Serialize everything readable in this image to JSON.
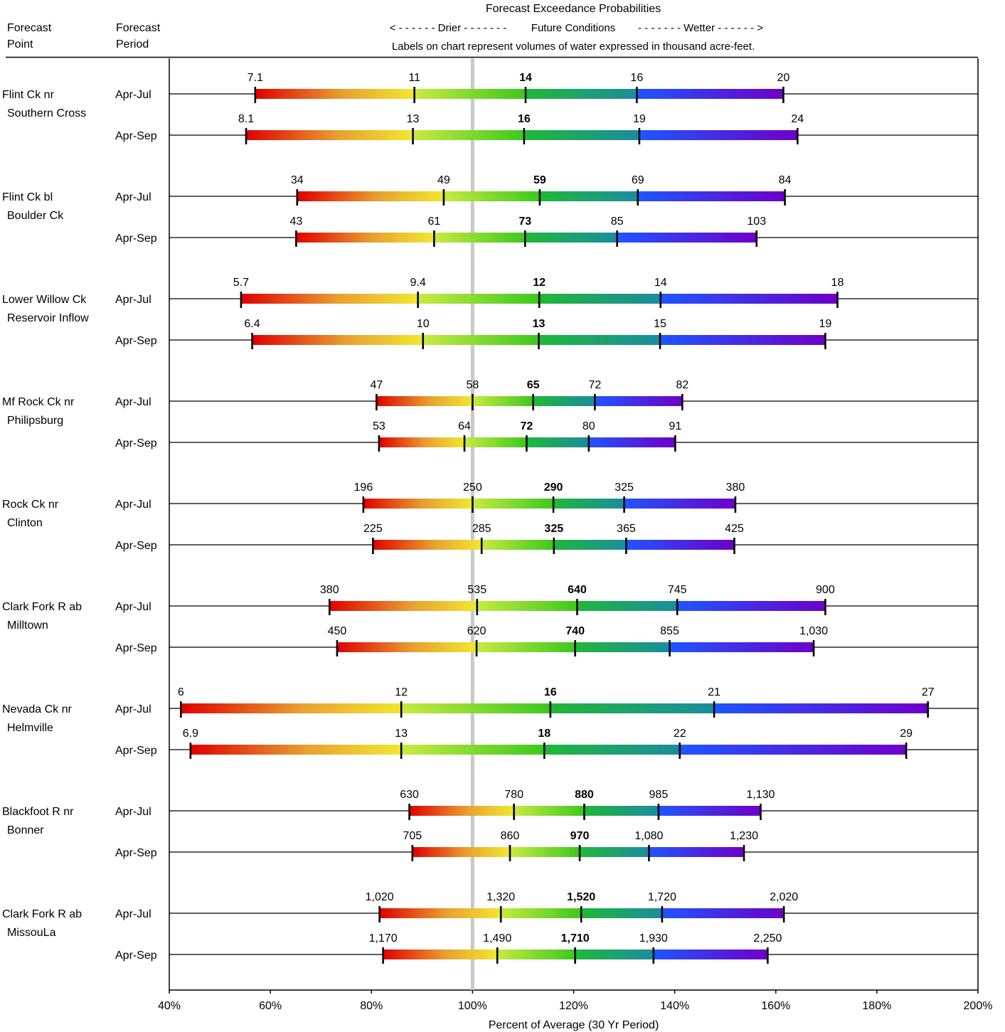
{
  "header": {
    "col1": [
      "Forecast",
      "Point"
    ],
    "col2": [
      "Forecast",
      "Period"
    ],
    "title": "Forecast Exceedance Probabilities",
    "drier_label": "< - - - - - -  Drier  - - - - - - -",
    "future_label": "Future Conditions",
    "wetter_label": "- - - - - - -  Wetter  - - - - - - >",
    "note": "Labels on chart represent volumes of water expressed in thousand acre-feet."
  },
  "chart_data": {
    "type": "range-bar",
    "title": "Forecast Exceedance Probabilities",
    "xlabel": "Percent of Average (30 Yr Period)",
    "xlim": [
      40,
      200
    ],
    "xticks": [
      40,
      60,
      80,
      100,
      120,
      140,
      160,
      180,
      200
    ],
    "xtick_labels": [
      "40%",
      "60%",
      "80%",
      "100%",
      "120%",
      "140%",
      "160%",
      "180%",
      "200%"
    ],
    "reference_line": 100,
    "colors": [
      "#e00000",
      "#f0e830",
      "#3cc81e",
      "#1f55ff",
      "#6e00c8"
    ],
    "groups": [
      {
        "point": [
          "Flint Ck nr",
          "Southern Cross"
        ],
        "rows": [
          {
            "period": "Apr-Jul",
            "pct": [
              57,
              88.5,
              110.5,
              132.5,
              161.5
            ],
            "labels": [
              "7.1",
              "11",
              "14",
              "16",
              "20"
            ]
          },
          {
            "period": "Apr-Sep",
            "pct": [
              55.2,
              88.2,
              110.2,
              133,
              164.3
            ],
            "labels": [
              "8.1",
              "13",
              "16",
              "19",
              "24"
            ]
          }
        ]
      },
      {
        "point": [
          "Flint Ck bl",
          "Boulder Ck"
        ],
        "rows": [
          {
            "period": "Apr-Jul",
            "pct": [
              65.3,
              94.3,
              113.3,
              132.7,
              161.8
            ],
            "labels": [
              "34",
              "49",
              "59",
              "69",
              "84"
            ]
          },
          {
            "period": "Apr-Sep",
            "pct": [
              65.1,
              92.4,
              110.4,
              128.6,
              156.2
            ],
            "labels": [
              "43",
              "61",
              "73",
              "85",
              "103"
            ]
          }
        ]
      },
      {
        "point": [
          "Lower Willow Ck",
          "Reservoir Inflow"
        ],
        "rows": [
          {
            "period": "Apr-Jul",
            "pct": [
              54.2,
              89.2,
              113.2,
              137.2,
              172.2
            ],
            "labels": [
              "5.7",
              "9.4",
              "12",
              "14",
              "18"
            ]
          },
          {
            "period": "Apr-Sep",
            "pct": [
              56.4,
              90.2,
              113.1,
              137.1,
              169.8
            ],
            "labels": [
              "6.4",
              "10",
              "13",
              "15",
              "19"
            ]
          }
        ]
      },
      {
        "point": [
          "Mf Rock Ck nr",
          "Philipsburg"
        ],
        "rows": [
          {
            "period": "Apr-Jul",
            "pct": [
              81,
              100,
              112,
              124.2,
              141.5
            ],
            "labels": [
              "47",
              "58",
              "65",
              "72",
              "82"
            ]
          },
          {
            "period": "Apr-Sep",
            "pct": [
              81.5,
              98.4,
              110.7,
              123,
              140.1
            ],
            "labels": [
              "53",
              "64",
              "72",
              "80",
              "91"
            ]
          }
        ]
      },
      {
        "point": [
          "Rock Ck nr",
          "Clinton"
        ],
        "rows": [
          {
            "period": "Apr-Jul",
            "pct": [
              78.4,
              100,
              116,
              130,
              152
            ],
            "labels": [
              "196",
              "250",
              "290",
              "325",
              "380"
            ]
          },
          {
            "period": "Apr-Sep",
            "pct": [
              80.3,
              101.8,
              116.1,
              130.4,
              151.8
            ],
            "labels": [
              "225",
              "285",
              "325",
              "365",
              "425"
            ]
          }
        ]
      },
      {
        "point": [
          "Clark Fork R ab",
          "Milltown"
        ],
        "rows": [
          {
            "period": "Apr-Jul",
            "pct": [
              71.7,
              100.9,
              120.7,
              140.5,
              169.8
            ],
            "labels": [
              "380",
              "535",
              "640",
              "745",
              "900"
            ]
          },
          {
            "period": "Apr-Sep",
            "pct": [
              73.2,
              100.8,
              120.3,
              139,
              167.5
            ],
            "labels": [
              "450",
              "620",
              "740",
              "855",
              "1,030"
            ]
          }
        ]
      },
      {
        "point": [
          "Nevada Ck nr",
          "Helmville"
        ],
        "rows": [
          {
            "period": "Apr-Jul",
            "pct": [
              42.3,
              85.9,
              115.4,
              147.8,
              190.1
            ],
            "labels": [
              "6",
              "12",
              "16",
              "21",
              "27"
            ]
          },
          {
            "period": "Apr-Sep",
            "pct": [
              44.2,
              85.9,
              114.2,
              141,
              185.8
            ],
            "labels": [
              "6.9",
              "13",
              "18",
              "22",
              "29"
            ]
          }
        ]
      },
      {
        "point": [
          "Blackfoot R nr",
          "Bonner"
        ],
        "rows": [
          {
            "period": "Apr-Jul",
            "pct": [
              87.5,
              108.2,
              122.1,
              136.8,
              157
            ],
            "labels": [
              "630",
              "780",
              "880",
              "985",
              "1,130"
            ]
          },
          {
            "period": "Apr-Sep",
            "pct": [
              88.1,
              107.4,
              121.2,
              134.9,
              153.7
            ],
            "labels": [
              "705",
              "860",
              "970",
              "1,080",
              "1,230"
            ]
          }
        ]
      },
      {
        "point": [
          "Clark Fork R ab",
          "MissouLa"
        ],
        "rows": [
          {
            "period": "Apr-Jul",
            "pct": [
              81.6,
              105.6,
              121.5,
              137.5,
              161.6
            ],
            "labels": [
              "1,020",
              "1,320",
              "1,520",
              "1,720",
              "2,020"
            ]
          },
          {
            "period": "Apr-Sep",
            "pct": [
              82.3,
              104.9,
              120.3,
              135.8,
              158.4
            ],
            "labels": [
              "1,170",
              "1,490",
              "1,710",
              "1,930",
              "2,250"
            ]
          }
        ]
      }
    ]
  }
}
